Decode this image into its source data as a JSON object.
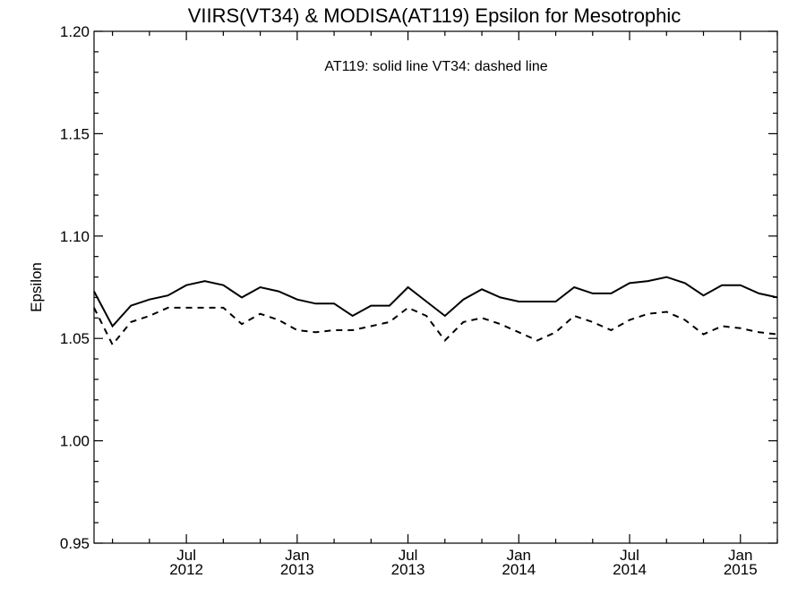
{
  "chart_data": {
    "type": "line",
    "title": "VIIRS(VT34) & MODISA(AT119)  Epsilon for Mesotrophic",
    "annotation": "AT119: solid line   VT34: dashed line",
    "xlabel": "",
    "ylabel": "Epsilon",
    "ylim": [
      0.95,
      1.2
    ],
    "y_ticks": [
      "0.95",
      "1.00",
      "1.05",
      "1.10",
      "1.15",
      "1.20"
    ],
    "x_range": [
      "2012-02",
      "2015-03"
    ],
    "x_ticks": [
      {
        "month": "Jul",
        "year": "2012",
        "date": "2012-07"
      },
      {
        "month": "Jan",
        "year": "2013",
        "date": "2013-01"
      },
      {
        "month": "Jul",
        "year": "2013",
        "date": "2013-07"
      },
      {
        "month": "Jan",
        "year": "2014",
        "date": "2014-01"
      },
      {
        "month": "Jul",
        "year": "2014",
        "date": "2014-07"
      },
      {
        "month": "Jan",
        "year": "2015",
        "date": "2015-01"
      }
    ],
    "x": [
      "2012-02",
      "2012-03",
      "2012-04",
      "2012-05",
      "2012-06",
      "2012-07",
      "2012-08",
      "2012-09",
      "2012-10",
      "2012-11",
      "2012-12",
      "2013-01",
      "2013-02",
      "2013-03",
      "2013-04",
      "2013-05",
      "2013-06",
      "2013-07",
      "2013-08",
      "2013-09",
      "2013-10",
      "2013-11",
      "2013-12",
      "2014-01",
      "2014-02",
      "2014-03",
      "2014-04",
      "2014-05",
      "2014-06",
      "2014-07",
      "2014-08",
      "2014-09",
      "2014-10",
      "2014-11",
      "2014-12",
      "2015-01",
      "2015-02",
      "2015-03"
    ],
    "series": [
      {
        "name": "AT119",
        "style": "solid",
        "values": [
          1.073,
          1.056,
          1.066,
          1.069,
          1.071,
          1.076,
          1.078,
          1.076,
          1.07,
          1.075,
          1.073,
          1.069,
          1.067,
          1.067,
          1.061,
          1.066,
          1.066,
          1.075,
          1.068,
          1.061,
          1.069,
          1.074,
          1.07,
          1.068,
          1.068,
          1.068,
          1.075,
          1.072,
          1.072,
          1.077,
          1.078,
          1.08,
          1.077,
          1.071,
          1.076,
          1.076,
          1.072,
          1.07
        ]
      },
      {
        "name": "VT34",
        "style": "dashed",
        "values": [
          1.065,
          1.047,
          1.058,
          1.061,
          1.065,
          1.065,
          1.065,
          1.065,
          1.057,
          1.062,
          1.059,
          1.054,
          1.053,
          1.054,
          1.054,
          1.056,
          1.058,
          1.065,
          1.061,
          1.049,
          1.058,
          1.06,
          1.057,
          1.053,
          1.049,
          1.053,
          1.061,
          1.058,
          1.054,
          1.059,
          1.062,
          1.063,
          1.059,
          1.052,
          1.056,
          1.055,
          1.053,
          1.052
        ]
      }
    ],
    "grid": false,
    "legend": "none"
  }
}
